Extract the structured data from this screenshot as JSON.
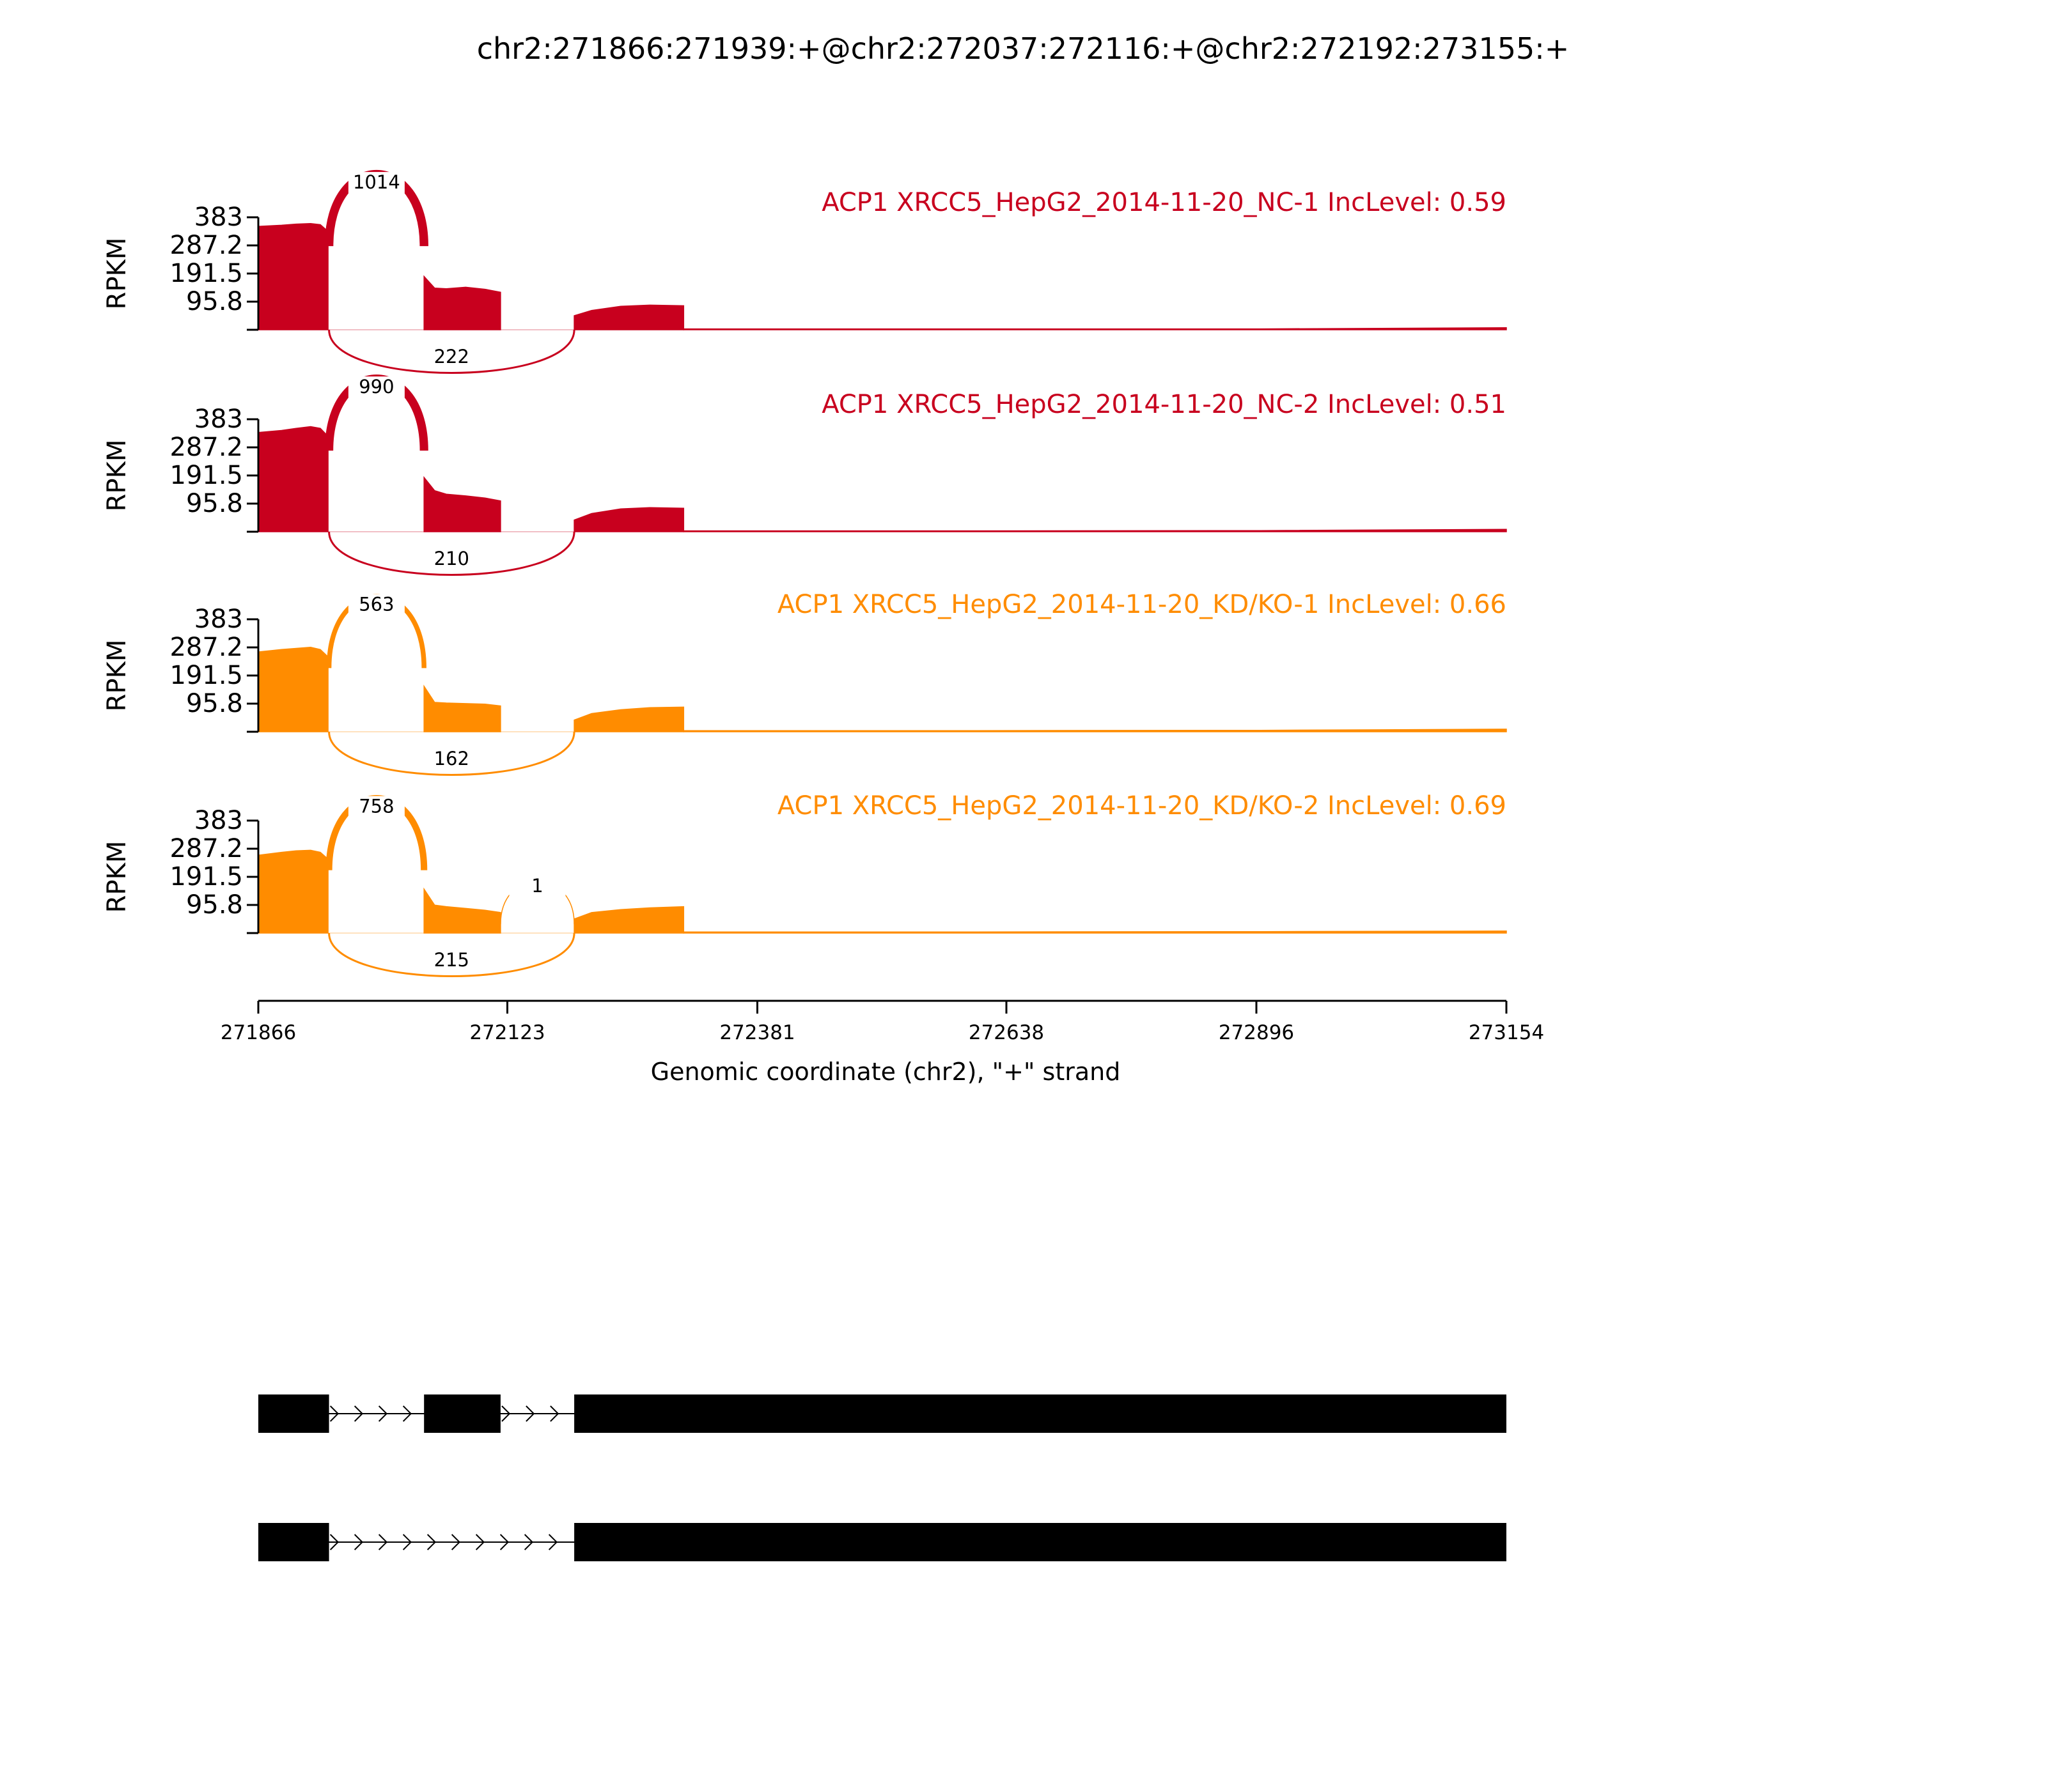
{
  "title": "chr2:271866:271939:+@chr2:272037:272116:+@chr2:272192:273155:+",
  "chart_data": {
    "type": "area",
    "title": "chr2:271866:271939:+@chr2:272037:272116:+@chr2:272192:273155:+",
    "ylabel": "RPKM",
    "xlabel": "Genomic coordinate (chr2), \"+\" strand",
    "xlim": [
      271866,
      273154
    ],
    "ylim": [
      0,
      383
    ],
    "x_ticks": [
      271866,
      272123,
      272381,
      272638,
      272896,
      273154
    ],
    "y_ticks": [
      95.8,
      191.5,
      287.2,
      383
    ],
    "y_tick_labels": [
      "95.8",
      "191.5",
      "287.2",
      "383"
    ],
    "exons": [
      [
        271866,
        271939
      ],
      [
        272037,
        272116
      ],
      [
        272192,
        273154
      ]
    ],
    "series": [
      {
        "name": "ACP1 XRCC5_HepG2_2014-11-20_NC-1 IncLevel: 0.59",
        "color": "#c8001e",
        "coverage": [
          {
            "x": [
              271866,
              271890,
              271905,
              271920,
              271930,
              271938
            ],
            "y": [
              352,
              356,
              360,
              362,
              358,
              335
            ]
          },
          {
            "x": [
              272037,
              272048,
              272060,
              272080,
              272100,
              272116
            ],
            "y": [
              182,
              142,
              140,
              145,
              138,
              128
            ]
          },
          {
            "x": [
              272192,
              272210,
              272240,
              272270,
              272305
            ],
            "y": [
              48,
              66,
              80,
              84,
              82
            ]
          },
          {
            "x": [
              272305,
              272600,
              272900,
              273154
            ],
            "y": [
              3,
              3,
              3,
              7
            ]
          }
        ],
        "junctions": [
          {
            "start": 271939,
            "end": 272037,
            "count": 1014,
            "side": "top"
          },
          {
            "start": 271939,
            "end": 272192,
            "count": 222,
            "side": "bottom"
          }
        ]
      },
      {
        "name": "ACP1 XRCC5_HepG2_2014-11-20_NC-2 IncLevel: 0.51",
        "color": "#c8001e",
        "coverage": [
          {
            "x": [
              271866,
              271890,
              271905,
              271920,
              271930,
              271938
            ],
            "y": [
              338,
              345,
              352,
              358,
              352,
              325
            ]
          },
          {
            "x": [
              272037,
              272048,
              272060,
              272080,
              272100,
              272116
            ],
            "y": [
              185,
              140,
              128,
              122,
              115,
              105
            ]
          },
          {
            "x": [
              272192,
              272210,
              272240,
              272270,
              272305
            ],
            "y": [
              40,
              62,
              78,
              82,
              80
            ]
          },
          {
            "x": [
              272305,
              272600,
              272900,
              273154
            ],
            "y": [
              3,
              3,
              4,
              8
            ]
          }
        ],
        "junctions": [
          {
            "start": 271939,
            "end": 272037,
            "count": 990,
            "side": "top"
          },
          {
            "start": 271939,
            "end": 272192,
            "count": 210,
            "side": "bottom"
          }
        ]
      },
      {
        "name": "ACP1 XRCC5_HepG2_2014-11-20_KD/KO-1 IncLevel: 0.66",
        "color": "#ff8c00",
        "coverage": [
          {
            "x": [
              271866,
              271890,
              271905,
              271920,
              271930,
              271938
            ],
            "y": [
              272,
              280,
              284,
              288,
              280,
              255
            ]
          },
          {
            "x": [
              272037,
              272048,
              272060,
              272080,
              272100,
              272116
            ],
            "y": [
              155,
              100,
              98,
              96,
              94,
              88
            ]
          },
          {
            "x": [
              272192,
              272210,
              272240,
              272270,
              272305
            ],
            "y": [
              40,
              62,
              75,
              82,
              84
            ]
          },
          {
            "x": [
              272305,
              272600,
              272900,
              273154
            ],
            "y": [
              4,
              4,
              5,
              9
            ]
          }
        ],
        "junctions": [
          {
            "start": 271939,
            "end": 272037,
            "count": 563,
            "side": "top"
          },
          {
            "start": 271939,
            "end": 272192,
            "count": 162,
            "side": "bottom"
          }
        ]
      },
      {
        "name": "ACP1 XRCC5_HepG2_2014-11-20_KD/KO-2 IncLevel: 0.69",
        "color": "#ff8c00",
        "coverage": [
          {
            "x": [
              271866,
              271890,
              271905,
              271920,
              271930,
              271938
            ],
            "y": [
              265,
              275,
              280,
              282,
              275,
              252
            ]
          },
          {
            "x": [
              272037,
              272048,
              272060,
              272080,
              272100,
              272116
            ],
            "y": [
              150,
              95,
              90,
              84,
              78,
              70
            ]
          },
          {
            "x": [
              272192,
              272210,
              272240,
              272270,
              272305
            ],
            "y": [
              48,
              70,
              80,
              86,
              90
            ]
          },
          {
            "x": [
              272305,
              272600,
              272900,
              273154
            ],
            "y": [
              4,
              4,
              5,
              7
            ]
          }
        ],
        "junctions": [
          {
            "start": 271939,
            "end": 272037,
            "count": 758,
            "side": "top"
          },
          {
            "start": 272116,
            "end": 272192,
            "count": 1,
            "side": "top"
          },
          {
            "start": 271939,
            "end": 272192,
            "count": 215,
            "side": "bottom"
          }
        ]
      }
    ],
    "isoforms": [
      {
        "exons": [
          [
            271866,
            271939
          ],
          [
            272037,
            272116
          ],
          [
            272192,
            273154
          ]
        ]
      },
      {
        "exons": [
          [
            271866,
            271939
          ],
          [
            272192,
            273154
          ]
        ]
      }
    ]
  }
}
